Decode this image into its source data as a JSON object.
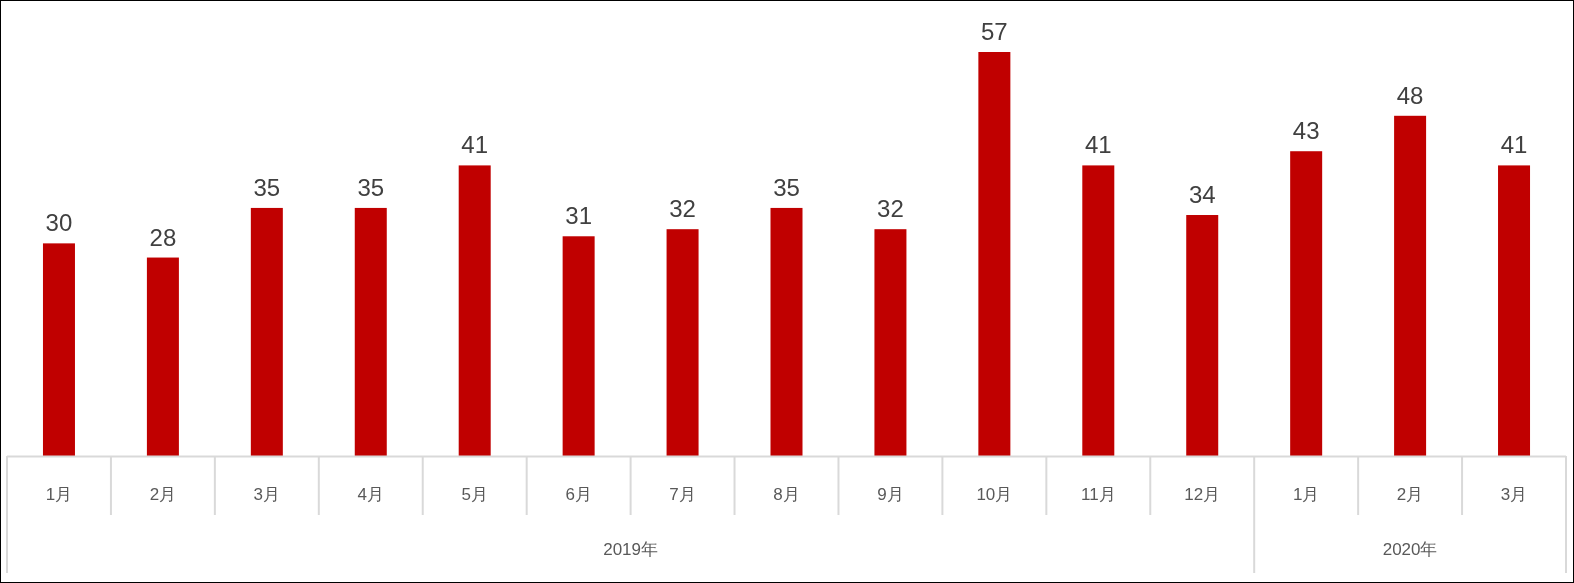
{
  "chart_data": {
    "type": "bar",
    "categories": [
      "1月",
      "2月",
      "3月",
      "4月",
      "5月",
      "6月",
      "7月",
      "8月",
      "9月",
      "10月",
      "11月",
      "12月",
      "1月",
      "2月",
      "3月"
    ],
    "values": [
      30,
      28,
      35,
      35,
      41,
      31,
      32,
      35,
      32,
      57,
      41,
      34,
      43,
      48,
      41
    ],
    "color": "#c00000",
    "data_labels": true,
    "annotations": [
      "2019年",
      "2020年"
    ]
  }
}
